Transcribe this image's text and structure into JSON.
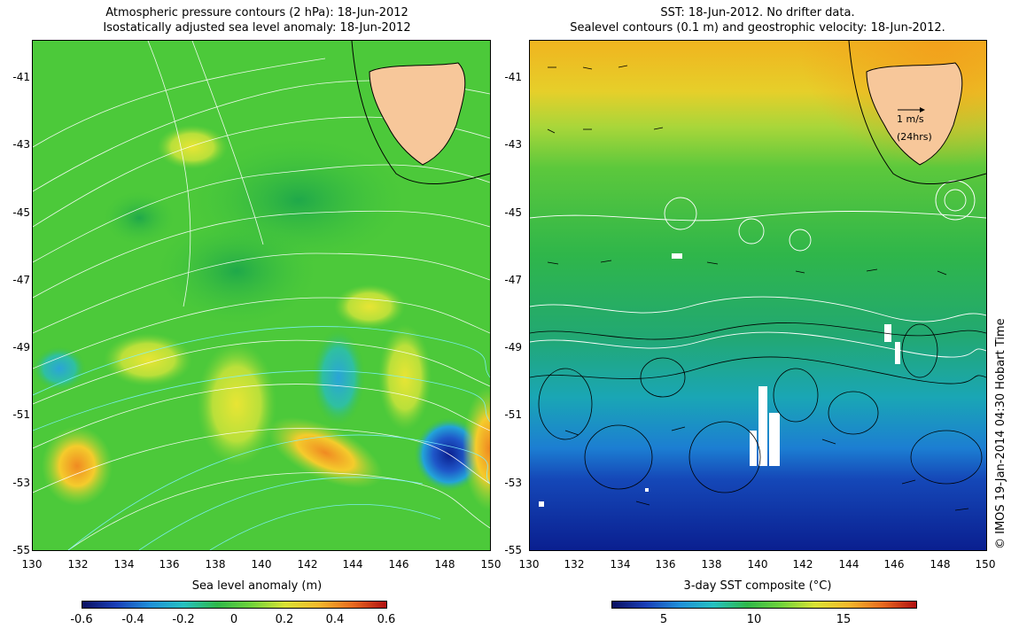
{
  "left_panel": {
    "title_line1": "Atmospheric pressure contours (2 hPa): 18-Jun-2012",
    "title_line2": "Isostatically adjusted sea level anomaly: 18-Jun-2012",
    "x_ticks": [
      "130",
      "132",
      "134",
      "136",
      "138",
      "140",
      "142",
      "144",
      "146",
      "148",
      "150"
    ],
    "y_ticks": [
      "-41",
      "-43",
      "-45",
      "-47",
      "-49",
      "-51",
      "-53",
      "-55"
    ],
    "colorbar_label": "Sea level anomaly (m)",
    "colorbar_ticks": [
      "-0.6",
      "-0.4",
      "-0.2",
      "0",
      "0.2",
      "0.4",
      "0.6"
    ]
  },
  "right_panel": {
    "title_line1": "SST: 18-Jun-2012. No drifter data.",
    "title_line2": "Sealevel contours (0.1 m) and geostrophic velocity: 18-Jun-2012.",
    "x_ticks": [
      "130",
      "132",
      "134",
      "136",
      "138",
      "140",
      "142",
      "144",
      "146",
      "148",
      "150"
    ],
    "y_ticks": [
      "-41",
      "-43",
      "-45",
      "-47",
      "-49",
      "-51",
      "-53",
      "-55"
    ],
    "colorbar_label": "3-day SST composite (°C)",
    "colorbar_ticks": [
      "5",
      "10",
      "15"
    ],
    "scale_vector_label": "1 m/s",
    "scale_vector_time": "(24hrs)"
  },
  "credit": "© IMOS 19-Jan-2014 04:30 Hobart Time",
  "colors": {
    "land": "#f7c79a",
    "sla_green": "#3fc43c",
    "sst_warm": "#f2b21e",
    "sst_cold": "#0a2aa0"
  }
}
